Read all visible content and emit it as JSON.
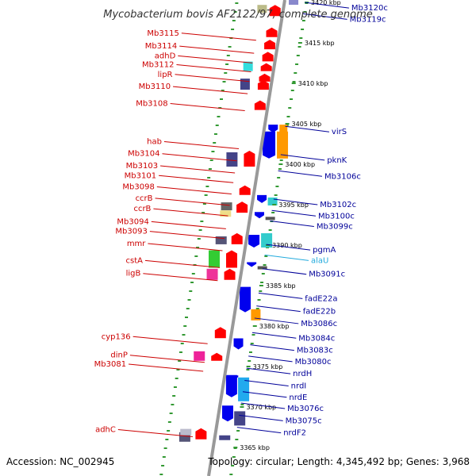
{
  "title": "Mycobacterium bovis AF2122/97, complete genome",
  "footer": {
    "accession": "Accession: NC_002945",
    "info": "Topology: circular; Length: 4,345,492 bp; Genes: 3,968"
  },
  "colors": {
    "forward": "#ff0000",
    "reverse": "#0000ee",
    "backbone": "#999999",
    "ticks": "#339933",
    "red_label": "#cc0000",
    "blue_label": "#000099",
    "rna_label": "#22aadd"
  },
  "scale": [
    {
      "label": "3420 kbp",
      "pos": 3420
    },
    {
      "label": "3415 kbp",
      "pos": 3415
    },
    {
      "label": "3410 kbp",
      "pos": 3410
    },
    {
      "label": "3405 kbp",
      "pos": 3405
    },
    {
      "label": "3400 kbp",
      "pos": 3400
    },
    {
      "label": "3395 kbp",
      "pos": 3395
    },
    {
      "label": "3390 kbp",
      "pos": 3390
    },
    {
      "label": "3385 kbp",
      "pos": 3385
    },
    {
      "label": "3380 kbp",
      "pos": 3380
    },
    {
      "label": "3375 kbp",
      "pos": 3375
    },
    {
      "label": "3370 kbp",
      "pos": 3370
    },
    {
      "label": "3365 kbp",
      "pos": 3365
    }
  ],
  "forward_labels": [
    {
      "name": "Mb3115",
      "pos": 3416.2
    },
    {
      "name": "Mb3114",
      "pos": 3414.6
    },
    {
      "name": "adhD",
      "pos": 3413.4
    },
    {
      "name": "Mb3112",
      "pos": 3412.3
    },
    {
      "name": "lipR",
      "pos": 3411.1
    },
    {
      "name": "Mb3110",
      "pos": 3409.6
    },
    {
      "name": "Mb3108",
      "pos": 3407.5
    },
    {
      "name": "hab",
      "pos": 3402.8
    },
    {
      "name": "Mb3104",
      "pos": 3401.3
    },
    {
      "name": "Mb3103",
      "pos": 3399.8
    },
    {
      "name": "Mb3101",
      "pos": 3398.6
    },
    {
      "name": "Mb3098",
      "pos": 3397.2
    },
    {
      "name": "ccrB",
      "pos": 3395.8
    },
    {
      "name": "ccrB",
      "pos": 3394.5
    },
    {
      "name": "Mb3094",
      "pos": 3392.9
    },
    {
      "name": "Mb3093",
      "pos": 3391.7
    },
    {
      "name": "mmr",
      "pos": 3390.2
    },
    {
      "name": "cstA",
      "pos": 3388.1
    },
    {
      "name": "ligB",
      "pos": 3386.5
    },
    {
      "name": "cyp136",
      "pos": 3378.7
    },
    {
      "name": "dinP",
      "pos": 3376.4
    },
    {
      "name": "Mb3081",
      "pos": 3375.3
    },
    {
      "name": "adhC",
      "pos": 3367.2
    }
  ],
  "reverse_labels": [
    {
      "name": "Mb3120c",
      "pos": 3419.3
    },
    {
      "name": "Mb3119c",
      "pos": 3417.9
    },
    {
      "name": "virS",
      "pos": 3404.0
    },
    {
      "name": "pknK",
      "pos": 3400.5
    },
    {
      "name": "Mb3106c",
      "pos": 3398.5
    },
    {
      "name": "Mb3102c",
      "pos": 3395.0
    },
    {
      "name": "Mb3100c",
      "pos": 3393.6
    },
    {
      "name": "Mb3099c",
      "pos": 3392.3
    },
    {
      "name": "pgmA",
      "pos": 3389.4
    },
    {
      "name": "alaU",
      "pos": 3388.1,
      "rna": true
    },
    {
      "name": "Mb3091c",
      "pos": 3386.4
    },
    {
      "name": "fadE22a",
      "pos": 3383.4
    },
    {
      "name": "fadE22b",
      "pos": 3381.8
    },
    {
      "name": "Mb3086c",
      "pos": 3380.3
    },
    {
      "name": "Mb3084c",
      "pos": 3378.5
    },
    {
      "name": "Mb3083c",
      "pos": 3377.0
    },
    {
      "name": "Mb3080c",
      "pos": 3375.6
    },
    {
      "name": "nrdH",
      "pos": 3374.1
    },
    {
      "name": "nrdI",
      "pos": 3372.6
    },
    {
      "name": "nrdE",
      "pos": 3371.2
    },
    {
      "name": "Mb3076c",
      "pos": 3369.8
    },
    {
      "name": "Mb3075c",
      "pos": 3368.3
    },
    {
      "name": "nrdF2",
      "pos": 3366.8
    }
  ]
}
